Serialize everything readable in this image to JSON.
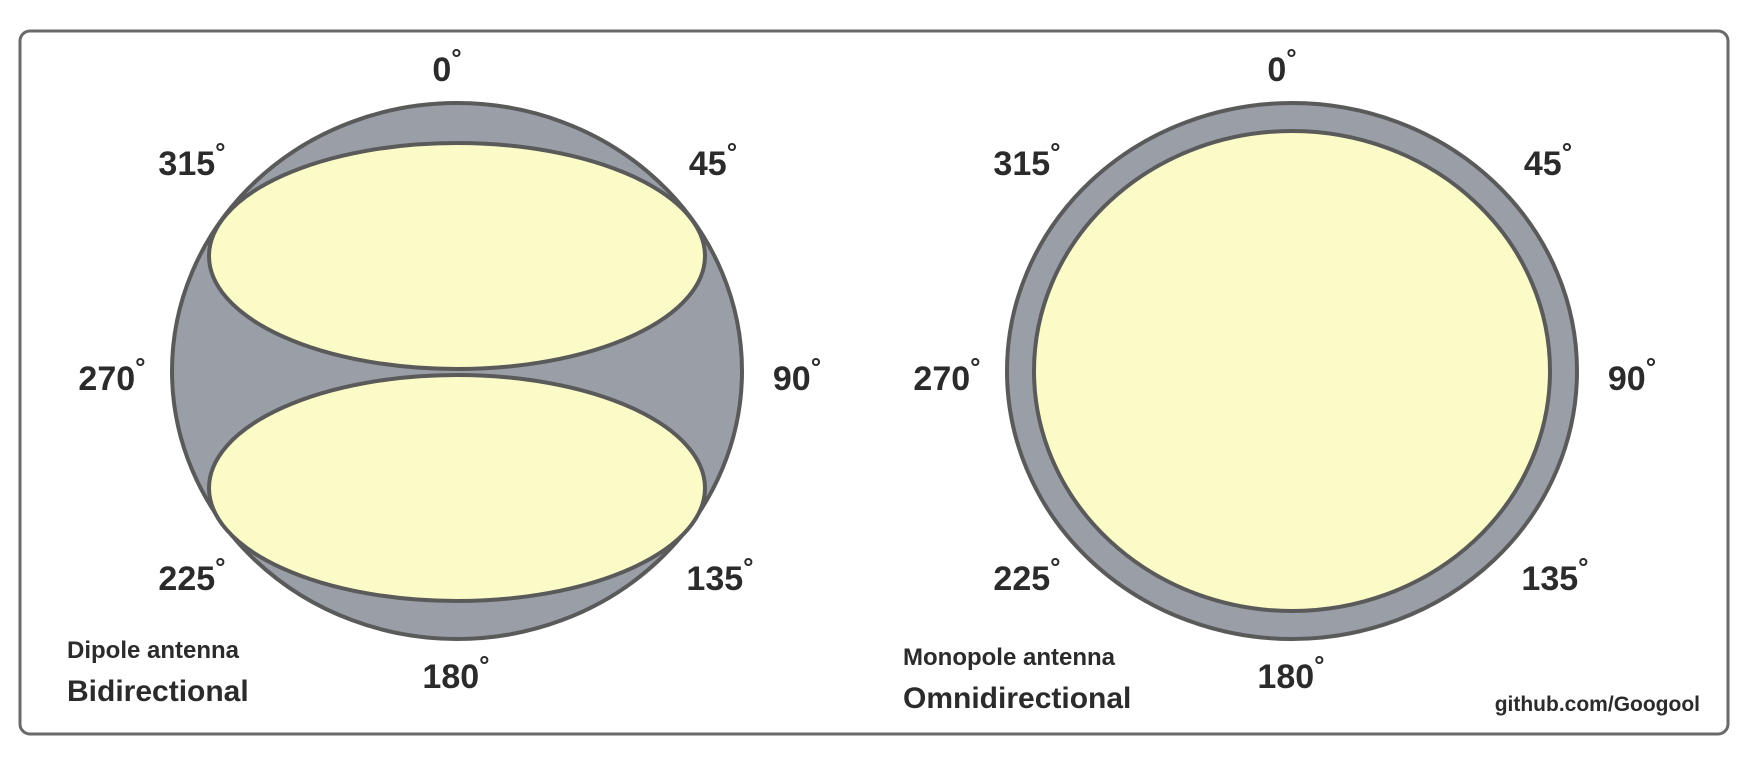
{
  "colors": {
    "outer_fill": "#999ea7",
    "lobe_fill": "#fbfbc8",
    "stroke": "#5a5a5a",
    "frame": "#6a6a6a",
    "text": "#2b2b2b"
  },
  "degree_symbol": "°",
  "diagrams": [
    {
      "id": "dipole",
      "caption_type": "Dipole antenna",
      "caption_pattern": "Bidirectional",
      "angles": [
        "0",
        "45",
        "90",
        "135",
        "180",
        "225",
        "270",
        "315"
      ]
    },
    {
      "id": "monopole",
      "caption_type": "Monopole antenna",
      "caption_pattern": "Omnidirectional",
      "angles": [
        "0",
        "45",
        "90",
        "135",
        "180",
        "225",
        "270",
        "315"
      ]
    }
  ],
  "credit": "github.com/Googool"
}
